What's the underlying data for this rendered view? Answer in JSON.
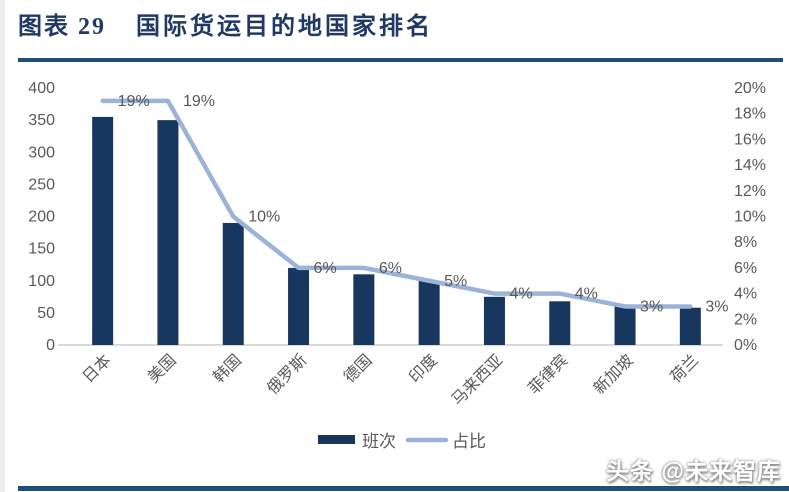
{
  "header": {
    "figure_label": "图表 29",
    "title": "国际货运目的地国家排名"
  },
  "watermark": {
    "text": "头条 @未来智库"
  },
  "colors": {
    "title_text": "#1F3864",
    "divider": "#1F4E79",
    "bar": "#17375E",
    "line": "#9CB3D8",
    "axis_text": "#595959",
    "data_label_text": "#595959",
    "baseline": "#D9D9D9",
    "bottom_bar": "#1F4E79",
    "background": "#FFFFFF"
  },
  "chart_data": {
    "type": "combo",
    "categories": [
      "日本",
      "美国",
      "韩国",
      "俄罗斯",
      "德国",
      "印度",
      "马来西亚",
      "菲律宾",
      "新加坡",
      "荷兰"
    ],
    "series": [
      {
        "name": "班次",
        "type": "bar",
        "axis": "left",
        "values": [
          355,
          350,
          190,
          120,
          110,
          100,
          75,
          68,
          63,
          58
        ]
      },
      {
        "name": "占比",
        "type": "line",
        "axis": "right",
        "values_percent": [
          19,
          19,
          10,
          6,
          6,
          5,
          4,
          4,
          3,
          3
        ],
        "labels": [
          "19%",
          "19%",
          "10%",
          "6%",
          "6%",
          "5%",
          "4%",
          "4%",
          "3%",
          "3%"
        ]
      }
    ],
    "left_axis": {
      "min": 0,
      "max": 400,
      "ticks": [
        400,
        350,
        300,
        250,
        200,
        150,
        100,
        50,
        0
      ]
    },
    "right_axis": {
      "min_label": "0%",
      "max_label": "20%",
      "ticks": [
        "20%",
        "18%",
        "16%",
        "14%",
        "12%",
        "10%",
        "8%",
        "6%",
        "4%",
        "2%",
        "0%"
      ]
    },
    "legend": {
      "position": "bottom",
      "entries": [
        "班次",
        "占比"
      ]
    },
    "grid": false,
    "x_label_rotation_deg": -45
  }
}
